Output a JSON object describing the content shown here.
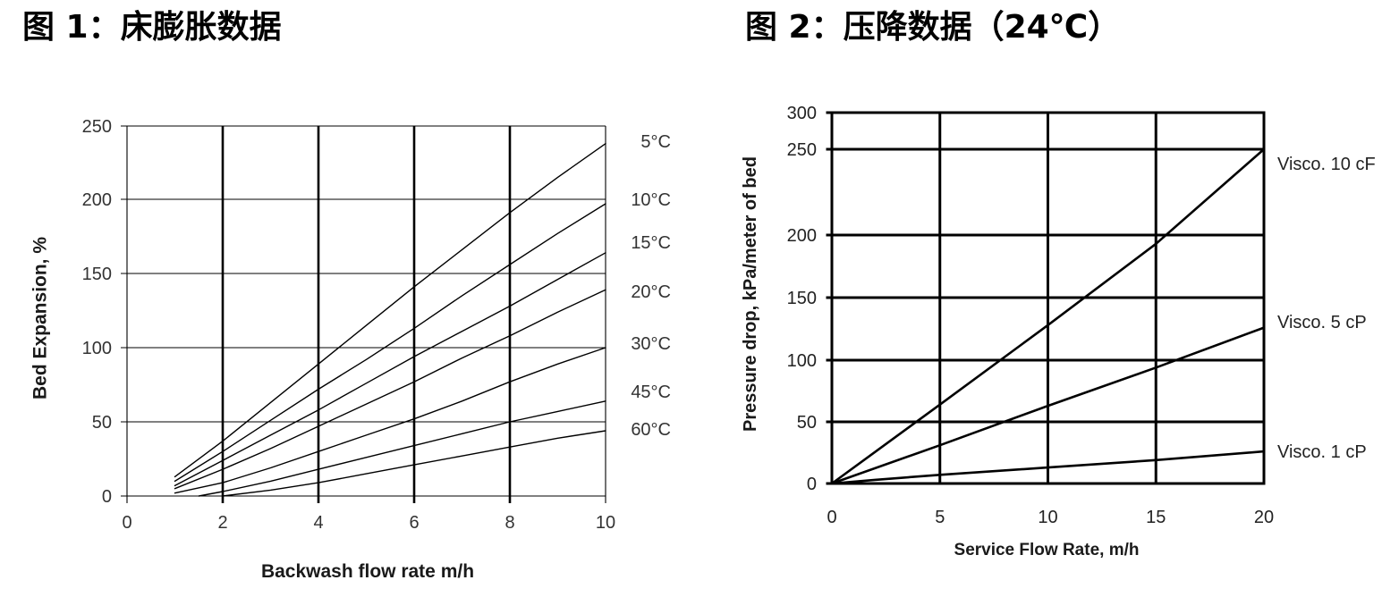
{
  "chart_data": [
    {
      "type": "line",
      "title": "图 1：床膨胀数据",
      "xlabel": "Backwash flow rate m/h",
      "ylabel": "Bed Expansion, %",
      "xlim": [
        0,
        10
      ],
      "ylim": [
        0,
        250
      ],
      "xticks": [
        0,
        2,
        4,
        6,
        8,
        10
      ],
      "yticks": [
        0,
        50,
        100,
        150,
        200,
        250
      ],
      "grid": true,
      "legend": "right",
      "line_color": "#000000",
      "grid_color": "#000000",
      "series": [
        {
          "name": "5°C",
          "x": [
            1,
            2,
            3,
            4,
            5,
            6,
            7,
            8,
            9,
            10
          ],
          "y": [
            13,
            37,
            63,
            89,
            115,
            141,
            166,
            191,
            215,
            238
          ]
        },
        {
          "name": "10°C",
          "x": [
            1,
            2,
            3,
            4,
            5,
            6,
            7,
            8,
            9,
            10
          ],
          "y": [
            10,
            30,
            51,
            72,
            92,
            113,
            135,
            156,
            177,
            197
          ]
        },
        {
          "name": "15°C",
          "x": [
            1,
            2,
            3,
            4,
            5,
            6,
            7,
            8,
            9,
            10
          ],
          "y": [
            7,
            24,
            41,
            58,
            76,
            94,
            111,
            128,
            146,
            164
          ]
        },
        {
          "name": "20°C",
          "x": [
            1,
            2,
            3,
            4,
            5,
            6,
            7,
            8,
            9,
            10
          ],
          "y": [
            5,
            18,
            32,
            47,
            62,
            77,
            93,
            108,
            124,
            139
          ]
        },
        {
          "name": "30°C",
          "x": [
            1,
            2,
            3,
            4,
            5,
            6,
            7,
            8,
            9,
            10
          ],
          "y": [
            2,
            9,
            19,
            30,
            41,
            52,
            64,
            77,
            89,
            100
          ]
        },
        {
          "name": "45°C",
          "x": [
            1.5,
            2,
            3,
            4,
            5,
            6,
            7,
            8,
            9,
            10
          ],
          "y": [
            0,
            3,
            10,
            18,
            26,
            34,
            42,
            50,
            57,
            64
          ]
        },
        {
          "name": "60°C",
          "x": [
            2,
            3,
            4,
            5,
            6,
            7,
            8,
            9,
            10
          ],
          "y": [
            0,
            4,
            9,
            15,
            21,
            27,
            33,
            39,
            44
          ]
        }
      ]
    },
    {
      "type": "line",
      "title": "图 2：压降数据（24℃）",
      "xlabel": "Service Flow Rate, m/h",
      "ylabel": "Pressure drop, kPa/meter of bed",
      "xlim": [
        0,
        20
      ],
      "ylim": [
        0,
        300
      ],
      "xticks": [
        0,
        5,
        10,
        15,
        20
      ],
      "yticks": [
        0,
        50,
        100,
        150,
        200,
        250,
        300
      ],
      "grid": true,
      "legend": "right",
      "line_color": "#000000",
      "grid_color": "#000000",
      "series": [
        {
          "name": "Visco. 10 cF",
          "x": [
            0,
            5,
            10,
            15,
            20
          ],
          "y": [
            0,
            64,
            128,
            193,
            250
          ]
        },
        {
          "name": "Visco. 5 cP",
          "x": [
            0,
            5,
            10,
            15,
            20
          ],
          "y": [
            0,
            31,
            63,
            94,
            126
          ]
        },
        {
          "name": "Visco. 1 cP",
          "x": [
            0,
            2,
            5,
            10,
            15,
            20
          ],
          "y": [
            0,
            3,
            7,
            13,
            19,
            26
          ]
        }
      ]
    }
  ]
}
